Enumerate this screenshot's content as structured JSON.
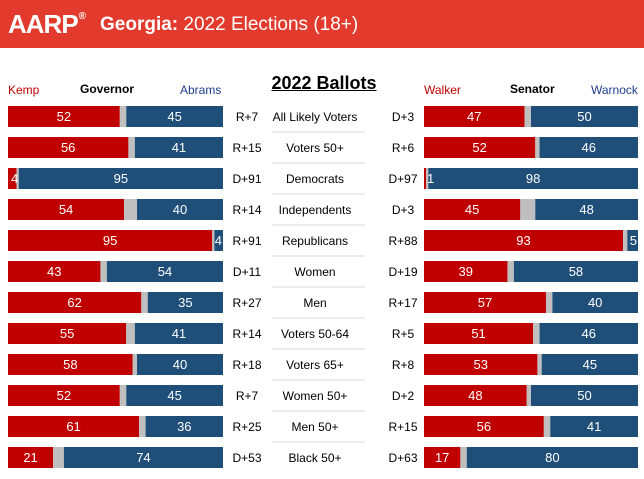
{
  "header": {
    "logo": "AARP",
    "logo_mark": "®",
    "state": "Georgia:",
    "title": " 2022 Elections (18+)"
  },
  "center_title": "2022 Ballots",
  "governor": {
    "race": "Governor",
    "rep": "Kemp",
    "dem": "Abrams"
  },
  "senator": {
    "race": "Senator",
    "rep": "Walker",
    "dem": "Warnock"
  },
  "colors": {
    "header": "#e23a2c",
    "rep": "#c00000",
    "dem": "#1f4e79",
    "undecided": "#bfbfbf"
  },
  "chart_data": {
    "type": "bar",
    "subtype": "stacked-horizontal",
    "title": "2022 Ballots",
    "categories": [
      "All Likely Voters",
      "Voters 50+",
      "Democrats",
      "Independents",
      "Republicans",
      "Women",
      "Men",
      "Voters 50-64",
      "Voters 65+",
      "Women 50+",
      "Men 50+",
      "Black 50+"
    ],
    "governor": {
      "series": [
        {
          "name": "Kemp",
          "values": [
            52,
            56,
            4,
            54,
            95,
            43,
            62,
            55,
            58,
            52,
            61,
            21
          ]
        },
        {
          "name": "Abrams",
          "values": [
            45,
            41,
            95,
            40,
            4,
            54,
            35,
            41,
            40,
            45,
            36,
            74
          ]
        }
      ],
      "margins": [
        "R+7",
        "R+15",
        "D+91",
        "R+14",
        "R+91",
        "D+11",
        "R+27",
        "R+14",
        "R+18",
        "R+7",
        "R+25",
        "D+53"
      ]
    },
    "senator": {
      "series": [
        {
          "name": "Walker",
          "values": [
            47,
            52,
            1,
            45,
            93,
            39,
            57,
            51,
            53,
            48,
            56,
            17
          ]
        },
        {
          "name": "Warnock",
          "values": [
            50,
            46,
            98,
            48,
            5,
            58,
            40,
            46,
            45,
            50,
            41,
            80
          ]
        }
      ],
      "margins": [
        "D+3",
        "R+6",
        "D+97",
        "D+3",
        "R+88",
        "D+19",
        "R+17",
        "R+5",
        "R+8",
        "D+2",
        "R+15",
        "D+63"
      ]
    },
    "xlim": [
      0,
      100
    ]
  }
}
